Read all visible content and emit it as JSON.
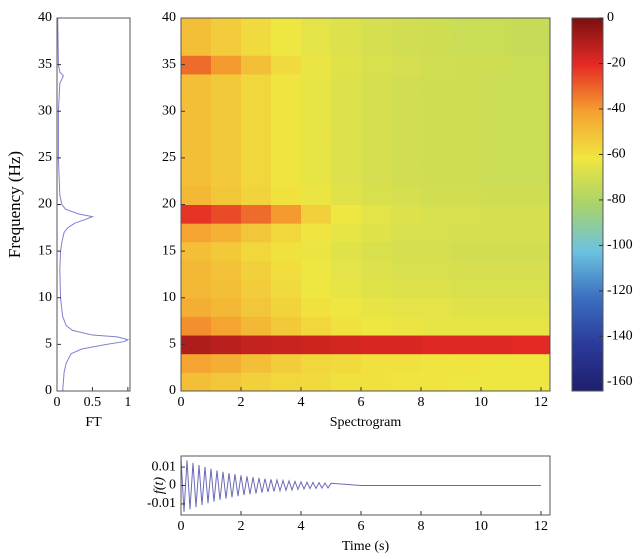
{
  "chart_data": [
    {
      "type": "line",
      "orientation": "horizontal",
      "color": "#8080d0",
      "y": [
        0,
        1,
        2,
        3,
        4,
        4.5,
        5,
        5.3,
        5.5,
        5.8,
        6,
        6.5,
        7,
        8,
        10,
        13,
        15,
        16,
        17,
        17.5,
        18,
        18.4,
        18.7,
        19,
        19.5,
        20,
        21,
        25,
        30,
        33,
        33.8,
        34.2,
        35,
        40
      ],
      "values": [
        0.08,
        0.09,
        0.1,
        0.13,
        0.2,
        0.35,
        0.7,
        0.95,
        1.0,
        0.85,
        0.5,
        0.22,
        0.13,
        0.08,
        0.05,
        0.04,
        0.05,
        0.07,
        0.1,
        0.15,
        0.25,
        0.4,
        0.5,
        0.3,
        0.12,
        0.07,
        0.04,
        0.02,
        0.02,
        0.04,
        0.09,
        0.04,
        0.02,
        0.01
      ],
      "xlim": [
        0,
        1.03
      ],
      "xticks": [
        0,
        0.5,
        1
      ],
      "ylim": [
        0,
        40
      ],
      "yticks": [
        0,
        5,
        10,
        15,
        20,
        25,
        30,
        35,
        40
      ],
      "xlabel": "FT",
      "ylabel": "Frequency (Hz)"
    },
    {
      "type": "heatmap",
      "xbins": [
        0,
        1,
        2,
        3,
        4,
        5,
        6,
        7,
        8,
        9,
        10,
        11,
        12,
        12.3
      ],
      "ybins": [
        0,
        2,
        4,
        6,
        8,
        10,
        12,
        14,
        16,
        18,
        20,
        22,
        24,
        26,
        28,
        30,
        32,
        34,
        36,
        38,
        40
      ],
      "values": [
        [
          -50,
          -52,
          -55,
          -57,
          -58,
          -60,
          -60,
          -61,
          -61,
          -62,
          -62,
          -62,
          -62
        ],
        [
          -42,
          -45,
          -50,
          -54,
          -57,
          -58,
          -60,
          -60,
          -61,
          -61,
          -62,
          -62,
          -62
        ],
        [
          -10,
          -12,
          -14,
          -15,
          -16,
          -17,
          -18,
          -18,
          -19,
          -19,
          -19,
          -20,
          -20
        ],
        [
          -38,
          -42,
          -48,
          -53,
          -57,
          -60,
          -62,
          -63,
          -64,
          -64,
          -64,
          -64,
          -64
        ],
        [
          -45,
          -48,
          -52,
          -56,
          -60,
          -62,
          -64,
          -65,
          -65,
          -66,
          -66,
          -66,
          -66
        ],
        [
          -48,
          -50,
          -54,
          -58,
          -62,
          -64,
          -66,
          -67,
          -67,
          -68,
          -68,
          -68,
          -68
        ],
        [
          -48,
          -51,
          -55,
          -59,
          -62,
          -65,
          -67,
          -68,
          -68,
          -69,
          -69,
          -69,
          -69
        ],
        [
          -50,
          -53,
          -57,
          -60,
          -63,
          -66,
          -68,
          -69,
          -69,
          -70,
          -70,
          -70,
          -70
        ],
        [
          -42,
          -46,
          -52,
          -57,
          -61,
          -64,
          -66,
          -68,
          -68,
          -69,
          -69,
          -69,
          -69
        ],
        [
          -22,
          -26,
          -32,
          -40,
          -55,
          -62,
          -65,
          -67,
          -68,
          -68,
          -69,
          -69,
          -69
        ],
        [
          -48,
          -52,
          -56,
          -60,
          -63,
          -66,
          -68,
          -69,
          -70,
          -70,
          -71,
          -71,
          -71
        ],
        [
          -50,
          -53,
          -57,
          -61,
          -64,
          -67,
          -69,
          -70,
          -71,
          -71,
          -72,
          -72,
          -72
        ],
        [
          -50,
          -53,
          -57,
          -61,
          -64,
          -67,
          -69,
          -70,
          -71,
          -71,
          -72,
          -72,
          -72
        ],
        [
          -50,
          -53,
          -57,
          -61,
          -64,
          -67,
          -69,
          -70,
          -71,
          -71,
          -72,
          -72,
          -72
        ],
        [
          -50,
          -53,
          -57,
          -61,
          -64,
          -67,
          -69,
          -70,
          -71,
          -71,
          -72,
          -72,
          -72
        ],
        [
          -50,
          -53,
          -57,
          -61,
          -64,
          -67,
          -69,
          -70,
          -71,
          -71,
          -72,
          -72,
          -72
        ],
        [
          -50,
          -53,
          -57,
          -61,
          -64,
          -67,
          -69,
          -70,
          -71,
          -71,
          -72,
          -72,
          -72
        ],
        [
          -32,
          -40,
          -50,
          -58,
          -63,
          -66,
          -68,
          -69,
          -70,
          -71,
          -71,
          -72,
          -72
        ],
        [
          -50,
          -54,
          -58,
          -62,
          -65,
          -67,
          -69,
          -70,
          -71,
          -72,
          -72,
          -73,
          -73
        ],
        [
          -50,
          -54,
          -58,
          -62,
          -65,
          -67,
          -69,
          -70,
          -71,
          -72,
          -72,
          -73,
          -73
        ]
      ],
      "zlim": [
        -164,
        0
      ],
      "zticks": [
        0,
        -20,
        -40,
        -60,
        -80,
        -100,
        -120,
        -140,
        -160
      ],
      "colormap": [
        "#1f1f6e",
        "#2b3a9a",
        "#3b6fc0",
        "#6cc3e0",
        "#a8d36a",
        "#f0e640",
        "#f5a030",
        "#e52a25",
        "#7a1010"
      ],
      "xlim": [
        0,
        12.3
      ],
      "xticks": [
        0,
        2,
        4,
        6,
        8,
        10,
        12
      ],
      "ylim": [
        0,
        40
      ],
      "yticks": [
        0,
        5,
        10,
        15,
        20,
        25,
        30,
        35,
        40
      ],
      "xlabel": "Spectrogram"
    },
    {
      "type": "line",
      "color": "#6a6ab8",
      "x": [
        0,
        0.1,
        0.2,
        0.3,
        0.4,
        0.5,
        0.6,
        0.7,
        0.8,
        0.9,
        1.0,
        1.1,
        1.2,
        1.3,
        1.4,
        1.5,
        1.6,
        1.7,
        1.8,
        1.9,
        2.0,
        2.1,
        2.2,
        2.3,
        2.4,
        2.5,
        2.6,
        2.7,
        2.8,
        2.9,
        3.0,
        3.1,
        3.2,
        3.3,
        3.4,
        3.5,
        3.6,
        3.7,
        3.8,
        3.9,
        4.0,
        4.1,
        4.2,
        4.3,
        4.4,
        4.5,
        4.6,
        4.7,
        4.8,
        4.9,
        5.0,
        6,
        8,
        10,
        12
      ],
      "values": [
        0.015,
        -0.0143,
        0.0136,
        -0.0129,
        0.0123,
        -0.0117,
        0.0111,
        -0.0106,
        0.0101,
        -0.0096,
        0.0091,
        -0.0087,
        0.0082,
        -0.0078,
        0.0074,
        -0.0071,
        0.0067,
        -0.0064,
        0.0061,
        -0.0058,
        0.0055,
        -0.0052,
        0.005,
        -0.0047,
        0.0045,
        -0.0043,
        0.0041,
        -0.0039,
        0.0037,
        -0.0035,
        0.0033,
        -0.0032,
        0.003,
        -0.0029,
        0.0027,
        -0.0026,
        0.0025,
        -0.0024,
        0.0022,
        -0.0021,
        0.002,
        -0.0019,
        0.0018,
        -0.0017,
        0.0017,
        -0.0016,
        0.0015,
        -0.0014,
        0.0014,
        -0.0013,
        0.0012,
        0,
        0,
        0,
        0
      ],
      "xlim": [
        0,
        12.3
      ],
      "xticks": [
        0,
        2,
        4,
        6,
        8,
        10,
        12
      ],
      "ylim": [
        -0.016,
        0.016
      ],
      "yticks": [
        0.01,
        0,
        -0.01
      ],
      "xlabel": "Time (s)",
      "ylabel": "f(t)"
    }
  ]
}
